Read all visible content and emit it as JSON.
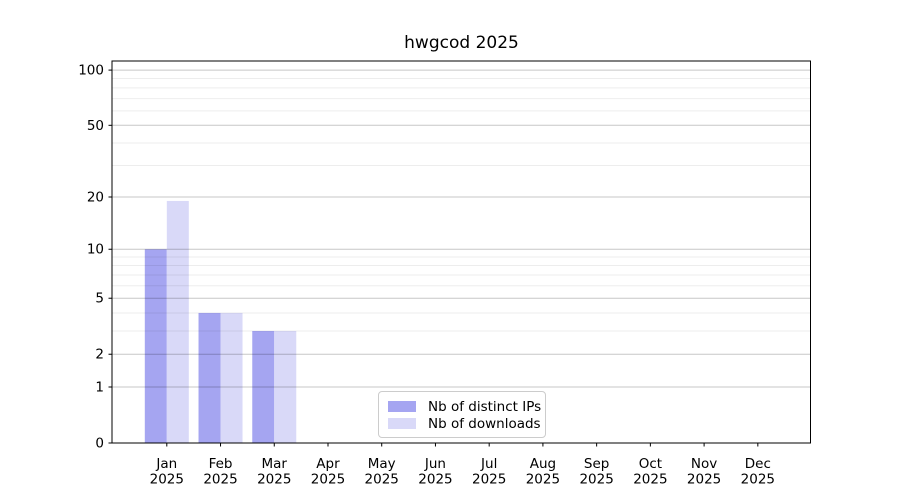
{
  "title": "hwgcod 2025",
  "chart_data": {
    "type": "bar",
    "title": "hwgcod 2025",
    "categories": [
      "Jan",
      "Feb",
      "Mar",
      "Apr",
      "May",
      "Jun",
      "Jul",
      "Aug",
      "Sep",
      "Oct",
      "Nov",
      "Dec"
    ],
    "category_year": "2025",
    "series": [
      {
        "name": "Nb of distinct IPs",
        "color": "#a5a5f1",
        "values": [
          10,
          4,
          3,
          0,
          0,
          0,
          0,
          0,
          0,
          0,
          0,
          0
        ]
      },
      {
        "name": "Nb of downloads",
        "color": "#d9d9f8",
        "values": [
          19,
          4,
          3,
          0,
          0,
          0,
          0,
          0,
          0,
          0,
          0,
          0
        ]
      }
    ],
    "y_scale": "log1p",
    "y_major_ticks": [
      0,
      1,
      2,
      5,
      10,
      20,
      50,
      100
    ],
    "y_minor_ticks": [
      3,
      4,
      6,
      7,
      8,
      9,
      30,
      40,
      60,
      70,
      80,
      90
    ],
    "ylim": [
      0,
      100
    ],
    "xlabel": "",
    "ylabel": "",
    "grid": true,
    "legend_position": "lower center",
    "colors": {
      "axis": "#000000",
      "major_grid_opacity": 0.22,
      "minor_grid_opacity": 0.07,
      "text": "#000000",
      "legend_border": "#cccccc"
    }
  }
}
